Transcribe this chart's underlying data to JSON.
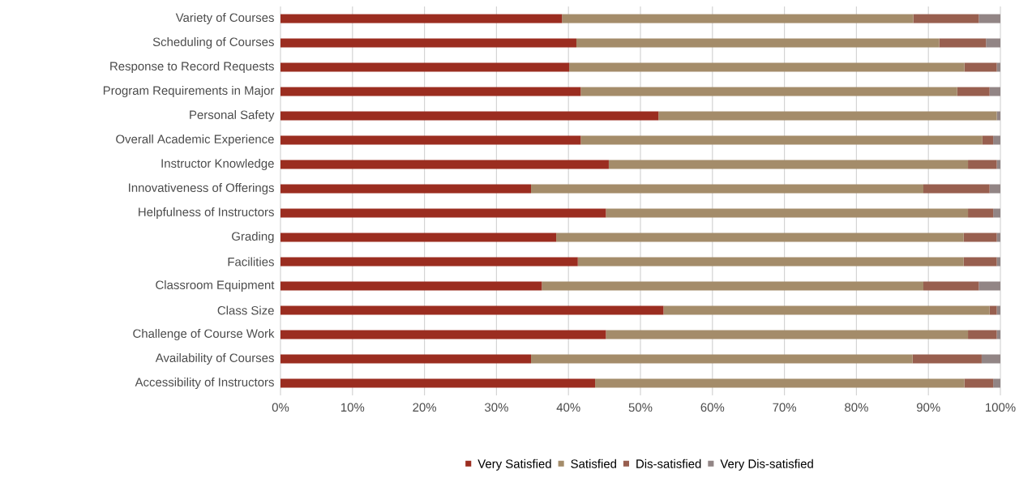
{
  "chart_data": {
    "type": "bar",
    "orientation": "horizontal",
    "stacked": true,
    "grid": "x",
    "legend": "bottom",
    "categories": [
      "Variety of Courses",
      "Scheduling of Courses",
      "Response to Record Requests",
      "Program Requirements in Major",
      "Personal Safety",
      "Overall Academic Experience",
      "Instructor Knowledge",
      "Innovativeness of Offerings",
      "Helpfulness of Instructors",
      "Grading",
      "Facilities",
      "Classroom Equipment",
      "Class Size",
      "Challenge of Course Work",
      "Availability of Courses",
      "Accessibility of Instructors"
    ],
    "xlim": [
      0,
      100
    ],
    "xticks": [
      {
        "value": 0,
        "label": "0%"
      },
      {
        "value": 10,
        "label": "10%"
      },
      {
        "value": 20,
        "label": "20%"
      },
      {
        "value": 30,
        "label": "30%"
      },
      {
        "value": 40,
        "label": "40%"
      },
      {
        "value": 50,
        "label": "50%"
      },
      {
        "value": 60,
        "label": "60%"
      },
      {
        "value": 70,
        "label": "70%"
      },
      {
        "value": 80,
        "label": "80%"
      },
      {
        "value": 90,
        "label": "90%"
      },
      {
        "value": 100,
        "label": "100%"
      }
    ],
    "series": [
      {
        "name": "Very Satisfied",
        "color": "#9b2d20",
        "values": [
          39.1,
          41.1,
          40.1,
          41.7,
          52.5,
          41.7,
          45.6,
          34.8,
          45.2,
          38.3,
          41.3,
          36.3,
          53.2,
          45.2,
          34.8,
          43.7
        ]
      },
      {
        "name": "Satisfied",
        "color": "#a48c6a",
        "values": [
          48.8,
          50.4,
          54.9,
          52.3,
          47.0,
          55.8,
          49.9,
          54.5,
          50.3,
          56.6,
          53.6,
          53.0,
          45.3,
          50.3,
          53.0,
          51.3
        ]
      },
      {
        "name": "Dis-satisfied",
        "color": "#985f4f",
        "values": [
          9.1,
          6.5,
          4.5,
          4.5,
          0,
          1.5,
          4.0,
          9.2,
          3.5,
          4.6,
          4.6,
          7.7,
          1.0,
          4.0,
          9.6,
          4.0
        ]
      },
      {
        "name": "Very Dis-satisfied",
        "color": "#928585",
        "values": [
          3.0,
          2.0,
          0.5,
          1.5,
          0.5,
          1.0,
          0.5,
          1.5,
          1.0,
          0.5,
          0.5,
          3.0,
          0.5,
          0.5,
          2.6,
          1.0
        ]
      }
    ]
  }
}
